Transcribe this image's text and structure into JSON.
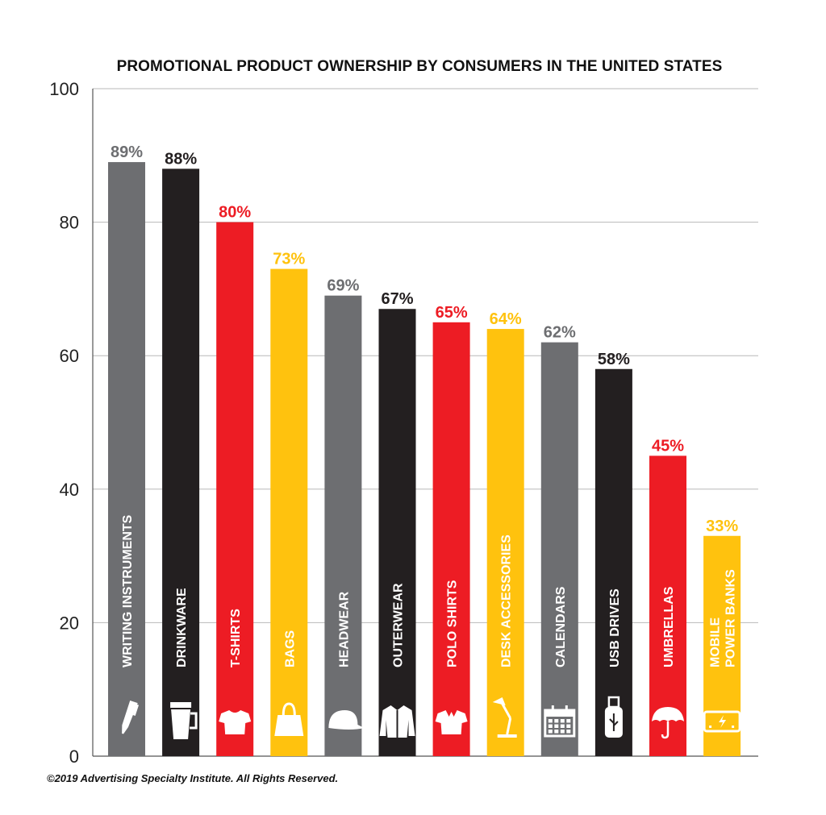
{
  "chart_data": {
    "type": "bar",
    "title": "PROMOTIONAL PRODUCT OWNERSHIP BY CONSUMERS IN THE UNITED STATES",
    "xlabel": "",
    "ylabel": "",
    "ylim": [
      0,
      100
    ],
    "yticks": [
      "0",
      "20",
      "40",
      "60",
      "80",
      "100"
    ],
    "grid": true,
    "categories": [
      "WRITING INSTRUMENTS",
      "DRINKWARE",
      "T-SHIRTS",
      "BAGS",
      "HEADWEAR",
      "OUTERWEAR",
      "POLO SHIRTS",
      "DESK ACCESSORIES",
      "CALENDARS",
      "USB DRIVES",
      "UMBRELLAS",
      "MOBILE POWER BANKS"
    ],
    "category_lines": [
      [
        "WRITING INSTRUMENTS"
      ],
      [
        "DRINKWARE"
      ],
      [
        "T-SHIRTS"
      ],
      [
        "BAGS"
      ],
      [
        "HEADWEAR"
      ],
      [
        "OUTERWEAR"
      ],
      [
        "POLO SHIRTS"
      ],
      [
        "DESK ACCESSORIES"
      ],
      [
        "CALENDARS"
      ],
      [
        "USB DRIVES"
      ],
      [
        "UMBRELLAS"
      ],
      [
        "MOBILE",
        "POWER BANKS"
      ]
    ],
    "values": [
      89,
      88,
      80,
      73,
      69,
      67,
      65,
      64,
      62,
      58,
      45,
      33
    ],
    "value_labels": [
      "89%",
      "88%",
      "80%",
      "73%",
      "69%",
      "67%",
      "65%",
      "64%",
      "62%",
      "58%",
      "45%",
      "33%"
    ],
    "bar_colors": [
      "#6d6e71",
      "#231f20",
      "#ed1c24",
      "#ffc20e",
      "#6d6e71",
      "#231f20",
      "#ed1c24",
      "#ffc20e",
      "#6d6e71",
      "#231f20",
      "#ed1c24",
      "#ffc20e"
    ],
    "icons": [
      "pen-icon",
      "travel-mug-icon",
      "t-shirt-icon",
      "shopping-bag-icon",
      "cap-icon",
      "jacket-icon",
      "polo-shirt-icon",
      "desk-lamp-icon",
      "calendar-icon",
      "usb-drive-icon",
      "umbrella-icon",
      "power-bank-icon"
    ]
  },
  "footer": {
    "copyright": "©2019 Advertising Specialty Institute. All Rights Reserved."
  }
}
